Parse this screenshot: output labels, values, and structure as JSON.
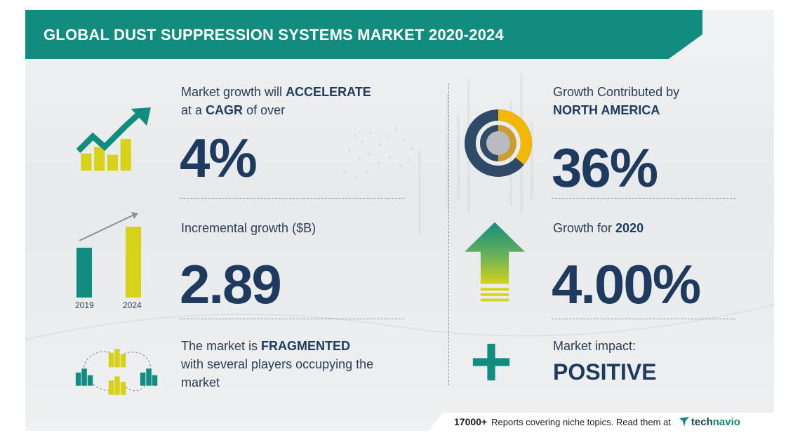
{
  "header": {
    "title": "GLOBAL DUST SUPPRESSION SYSTEMS MARKET 2020-2024"
  },
  "colors": {
    "teal": "#128c7e",
    "navy": "#1f3a5f",
    "yellow": "#d6d21a",
    "gold": "#f2b705"
  },
  "left": {
    "cagr": {
      "line1_prefix": "Market growth will",
      "line1_bold": "ACCELERATE",
      "line2_prefix": "at a",
      "line2_bold": "CAGR",
      "line2_suffix": "of over",
      "value": "4%",
      "icon": "growth-chart-icon"
    },
    "incremental": {
      "label": "Incremental growth ($B)",
      "value": "2.89",
      "icon": "bar-comparison-icon",
      "year_start": "2019",
      "year_end": "2024"
    },
    "structure": {
      "line1_prefix": "The market is",
      "line1_bold": "FRAGMENTED",
      "line2": "with several players occupying the",
      "line3": "market",
      "icon": "network-buildings-icon"
    }
  },
  "right": {
    "region": {
      "line1": "Growth Contributed by",
      "line2_bold": "NORTH AMERICA",
      "value": "36%",
      "icon": "donut-share-icon",
      "share": 0.36
    },
    "yoy": {
      "label_prefix": "Growth for",
      "label_bold": "2020",
      "value": "4.00%",
      "icon": "up-arrow-icon"
    },
    "impact": {
      "label": "Market impact:",
      "value": "POSITIVE",
      "icon": "plus-icon"
    }
  },
  "footer": {
    "count": "17000+",
    "text": "Reports covering niche topics. Read them at",
    "brand_prefix": "tech",
    "brand_suffix": "navio"
  }
}
